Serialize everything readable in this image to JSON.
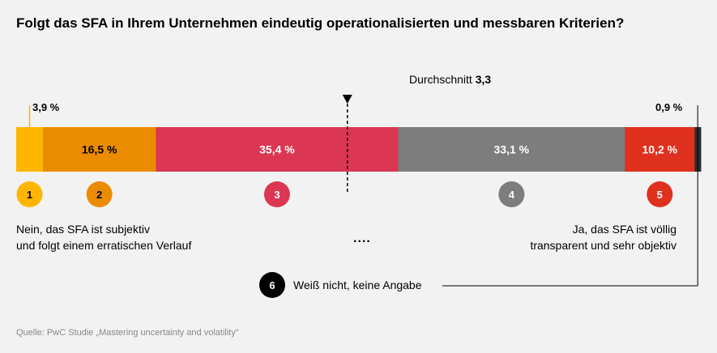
{
  "title": "Folgt das SFA in Ihrem Unternehmen eindeutig operationalisierten und messbaren Kriterien?",
  "average": {
    "label": "Durchschnitt",
    "value": "3,3",
    "numeric": 3.3
  },
  "callouts": {
    "first": "3,9 %",
    "last": "0,9 %"
  },
  "desc_left": [
    "Nein, das SFA ist subjektiv",
    "und folgt einem erratischen Verlauf"
  ],
  "desc_right": [
    "Ja, das SFA ist völlig",
    "transparent und sehr objektiv"
  ],
  "ellipsis": "....",
  "legend_6": {
    "number": "6",
    "label": "Weiß nicht, keine Angabe"
  },
  "source": "Quelle: PwC Studie „Mastering uncertainty and volatility“",
  "colors": {
    "s1": "#ffb600",
    "s2": "#eb8c00",
    "s3": "#db3752",
    "s4": "#7d7d7d",
    "s5": "#e0301e",
    "s6": "#2d2d2d",
    "background": "#f2f2f2"
  },
  "chart_data": {
    "type": "bar",
    "orientation": "horizontal-stacked",
    "categories": [
      "1",
      "2",
      "3",
      "4",
      "5",
      "6"
    ],
    "values": [
      3.9,
      16.5,
      35.4,
      33.1,
      10.2,
      0.9
    ],
    "labels": [
      "3,9 %",
      "16,5 %",
      "35,4 %",
      "33,1 %",
      "10,2 %",
      "0,9 %"
    ],
    "inline_labels": [
      "",
      "16,5 %",
      "35,4 %",
      "33,1 %",
      "10,2 %",
      ""
    ],
    "average_position": 3.3
  }
}
